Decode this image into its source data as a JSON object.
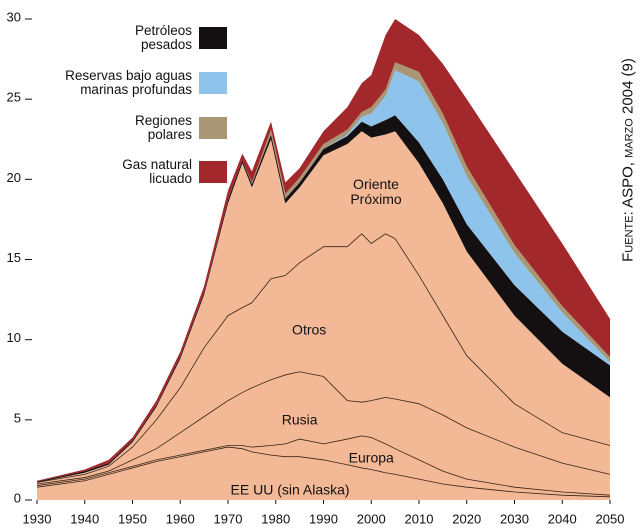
{
  "chart_data": {
    "type": "stacked_area",
    "source": "Fuente: ASPO, marzo 2004 (9)",
    "x": [
      1930,
      1940,
      1945,
      1950,
      1955,
      1960,
      1965,
      1970,
      1973,
      1975,
      1979,
      1982,
      1985,
      1990,
      1995,
      1998,
      2000,
      2003,
      2005,
      2010,
      2015,
      2020,
      2030,
      2040,
      2050
    ],
    "series": [
      {
        "name": "EE UU (sin Alaska)",
        "color": "#f3b997",
        "values": [
          0.8,
          1.2,
          1.6,
          2.0,
          2.4,
          2.7,
          3.0,
          3.3,
          3.2,
          3.0,
          2.8,
          2.7,
          2.7,
          2.5,
          2.2,
          2.0,
          1.9,
          1.7,
          1.6,
          1.3,
          1.0,
          0.8,
          0.5,
          0.3,
          0.2
        ]
      },
      {
        "name": "Europa",
        "color": "#f3b997",
        "values": [
          0.1,
          0.1,
          0.1,
          0.1,
          0.1,
          0.1,
          0.1,
          0.1,
          0.2,
          0.3,
          0.6,
          0.8,
          1.1,
          1.0,
          1.6,
          2.0,
          2.0,
          1.8,
          1.6,
          1.2,
          0.8,
          0.5,
          0.3,
          0.2,
          0.1
        ]
      },
      {
        "name": "Rusia",
        "color": "#f3b997",
        "values": [
          0.1,
          0.1,
          0.1,
          0.4,
          0.7,
          1.4,
          2.1,
          2.8,
          3.3,
          3.7,
          4.1,
          4.3,
          4.2,
          4.2,
          2.4,
          2.1,
          2.3,
          2.9,
          3.1,
          3.5,
          3.5,
          3.2,
          2.5,
          1.8,
          1.3
        ]
      },
      {
        "name": "Otros",
        "color": "#f3b997",
        "values": [
          0.1,
          0.2,
          0.3,
          0.8,
          1.8,
          2.8,
          4.3,
          5.3,
          5.3,
          5.3,
          6.3,
          6.2,
          6.8,
          8.1,
          9.6,
          10.5,
          9.8,
          10.2,
          10.0,
          8.0,
          6.2,
          4.5,
          2.7,
          1.9,
          1.8
        ]
      },
      {
        "name": "Oriente\nPróximo",
        "color": "#f3b997",
        "values": [
          0,
          0.1,
          0.1,
          0.3,
          0.8,
          1.8,
          3.3,
          7.0,
          9.0,
          7.2,
          8.7,
          4.5,
          4.7,
          5.7,
          6.4,
          6.4,
          6.6,
          6.2,
          6.7,
          7.0,
          7.0,
          6.5,
          5.5,
          4.3,
          3.0
        ]
      },
      {
        "name": "Petróleos\npesados",
        "color": "#141012",
        "values": [
          0.05,
          0.1,
          0.1,
          0.1,
          0.1,
          0.15,
          0.15,
          0.2,
          0.2,
          0.2,
          0.3,
          0.3,
          0.3,
          0.4,
          0.5,
          0.6,
          0.7,
          0.9,
          1.0,
          1.3,
          1.5,
          1.7,
          1.9,
          2.0,
          2.0
        ]
      },
      {
        "name": "Reservas bajo aguas\nmarinas profundas",
        "color": "#8ec3ec",
        "values": [
          0,
          0,
          0,
          0,
          0,
          0,
          0,
          0,
          0,
          0,
          0,
          0,
          0,
          0,
          0.1,
          0.3,
          0.8,
          1.5,
          2.8,
          3.8,
          3.5,
          3.0,
          2.0,
          1.2,
          0.2
        ]
      },
      {
        "name": "Regiones\npolares",
        "color": "#a89674",
        "values": [
          0,
          0,
          0,
          0,
          0,
          0,
          0,
          0,
          0,
          0.1,
          0.3,
          0.3,
          0.3,
          0.3,
          0.3,
          0.3,
          0.4,
          0.4,
          0.5,
          0.6,
          0.6,
          0.6,
          0.5,
          0.4,
          0.3
        ]
      },
      {
        "name": "Gas natural\nlicuado",
        "color": "#a3282b",
        "values": [
          0.05,
          0.1,
          0.2,
          0.2,
          0.3,
          0.3,
          0.4,
          0.6,
          0.4,
          0.7,
          0.5,
          0.7,
          0.6,
          0.8,
          1.4,
          1.8,
          2.0,
          3.4,
          2.7,
          2.3,
          3.1,
          4.2,
          4.6,
          3.9,
          2.4
        ]
      }
    ],
    "xlim": [
      1930,
      2050
    ],
    "xticks": [
      1930,
      1940,
      1950,
      1960,
      1970,
      1980,
      1990,
      2000,
      2010,
      2020,
      2030,
      2040,
      2050
    ],
    "ylim": [
      0,
      30
    ],
    "yticks": [
      0,
      5,
      10,
      15,
      20,
      25,
      30
    ]
  }
}
